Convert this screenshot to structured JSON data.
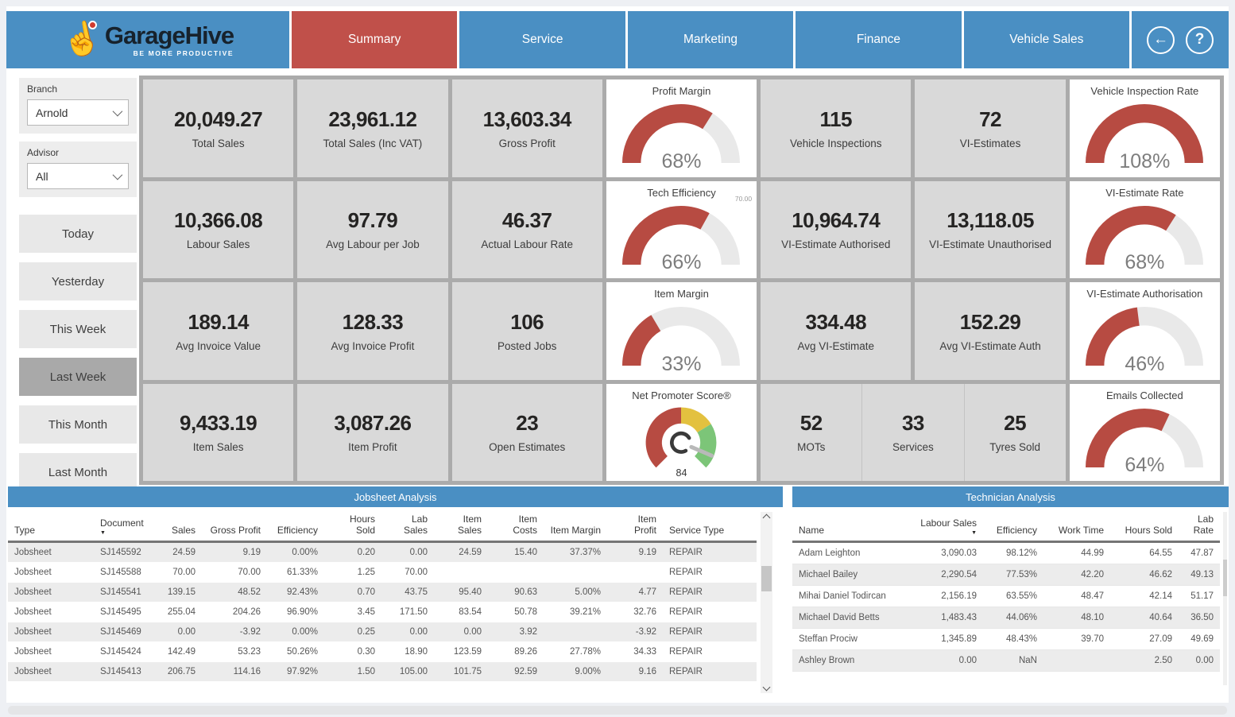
{
  "header": {
    "logo": {
      "brand": "GarageHive",
      "tagline": "BE MORE PRODUCTIVE"
    },
    "tabs": [
      {
        "label": "Summary",
        "active": true
      },
      {
        "label": "Service",
        "active": false
      },
      {
        "label": "Marketing",
        "active": false
      },
      {
        "label": "Finance",
        "active": false
      },
      {
        "label": "Vehicle Sales",
        "active": false
      }
    ],
    "icons": [
      {
        "name": "back",
        "glyph": "←"
      },
      {
        "name": "help",
        "glyph": "?"
      }
    ]
  },
  "sidebar": {
    "slicers": [
      {
        "label": "Branch",
        "value": "Arnold"
      },
      {
        "label": "Advisor",
        "value": "All"
      }
    ],
    "buttons": [
      {
        "label": "Today",
        "selected": false
      },
      {
        "label": "Yesterday",
        "selected": false
      },
      {
        "label": "This Week",
        "selected": false
      },
      {
        "label": "Last Week",
        "selected": true
      },
      {
        "label": "This Month",
        "selected": false
      },
      {
        "label": "Last Month",
        "selected": false
      }
    ]
  },
  "grid": {
    "rows": [
      {
        "cells": [
          {
            "type": "kpi",
            "value": "20,049.27",
            "label": "Total Sales"
          },
          {
            "type": "kpi",
            "value": "23,961.12",
            "label": "Total Sales (Inc VAT)"
          },
          {
            "type": "kpi",
            "value": "13,603.34",
            "label": "Gross Profit"
          },
          {
            "type": "gauge",
            "title": "Profit Margin",
            "percent": 68,
            "display": "68%"
          },
          {
            "type": "kpi",
            "value": "115",
            "label": "Vehicle Inspections"
          },
          {
            "type": "kpi",
            "value": "72",
            "label": "VI-Estimates"
          },
          {
            "type": "gauge",
            "title": "Vehicle Inspection Rate",
            "percent": 108,
            "display": "108%"
          }
        ]
      },
      {
        "cells": [
          {
            "type": "kpi",
            "value": "10,366.08",
            "label": "Labour Sales"
          },
          {
            "type": "kpi",
            "value": "97.79",
            "label": "Avg Labour per Job"
          },
          {
            "type": "kpi",
            "value": "46.37",
            "label": "Actual Labour Rate"
          },
          {
            "type": "gauge",
            "title": "Tech Efficiency",
            "percent": 66,
            "display": "66%",
            "target": "70.00"
          },
          {
            "type": "kpi",
            "value": "10,964.74",
            "label": "VI-Estimate Authorised"
          },
          {
            "type": "kpi",
            "value": "13,118.05",
            "label": "VI-Estimate Unauthorised"
          },
          {
            "type": "gauge",
            "title": "VI-Estimate Rate",
            "percent": 68,
            "display": "68%"
          }
        ]
      },
      {
        "cells": [
          {
            "type": "kpi",
            "value": "189.14",
            "label": "Avg Invoice Value"
          },
          {
            "type": "kpi",
            "value": "128.33",
            "label": "Avg Invoice Profit"
          },
          {
            "type": "kpi",
            "value": "106",
            "label": "Posted Jobs"
          },
          {
            "type": "gauge",
            "title": "Item Margin",
            "percent": 33,
            "display": "33%"
          },
          {
            "type": "kpi",
            "value": "334.48",
            "label": "Avg VI-Estimate"
          },
          {
            "type": "kpi",
            "value": "152.29",
            "label": "Avg VI-Estimate Auth"
          },
          {
            "type": "gauge",
            "title": "VI-Estimate Authorisation",
            "percent": 46,
            "display": "46%"
          }
        ]
      },
      {
        "cells": [
          {
            "type": "kpi",
            "value": "9,433.19",
            "label": "Item Sales"
          },
          {
            "type": "kpi",
            "value": "3,087.26",
            "label": "Item Profit"
          },
          {
            "type": "kpi",
            "value": "23",
            "label": "Open Estimates"
          },
          {
            "type": "nps",
            "title": "Net Promoter Score®",
            "value": "84",
            "needle_angle": 113
          },
          {
            "type": "triple",
            "items": [
              {
                "value": "52",
                "label": "MOTs"
              },
              {
                "value": "33",
                "label": "Services"
              },
              {
                "value": "25",
                "label": "Tyres Sold"
              }
            ]
          },
          {
            "type": "gauge",
            "title": "Emails Collected",
            "percent": 64,
            "display": "64%"
          }
        ]
      }
    ]
  },
  "tables": {
    "jobsheet": {
      "title": "Jobsheet Analysis",
      "columns": [
        "Type",
        "Document",
        "Sales",
        "Gross Profit",
        "Efficiency",
        "Hours Sold",
        "Lab Sales",
        "Item Sales",
        "Item Costs",
        "Item Margin",
        "Item Profit",
        "Service Type"
      ],
      "sorted_column": "Document",
      "numeric_columns": [
        2,
        3,
        4,
        5,
        6,
        7,
        8,
        9,
        10
      ],
      "rows": [
        [
          "Jobsheet",
          "SJ145592",
          "24.59",
          "9.19",
          "0.00%",
          "0.20",
          "0.00",
          "24.59",
          "15.40",
          "37.37%",
          "9.19",
          "REPAIR"
        ],
        [
          "Jobsheet",
          "SJ145588",
          "70.00",
          "70.00",
          "61.33%",
          "1.25",
          "70.00",
          "",
          "",
          "",
          "",
          "REPAIR"
        ],
        [
          "Jobsheet",
          "SJ145541",
          "139.15",
          "48.52",
          "92.43%",
          "0.70",
          "43.75",
          "95.40",
          "90.63",
          "5.00%",
          "4.77",
          "REPAIR"
        ],
        [
          "Jobsheet",
          "SJ145495",
          "255.04",
          "204.26",
          "96.90%",
          "3.45",
          "171.50",
          "83.54",
          "50.78",
          "39.21%",
          "32.76",
          "REPAIR"
        ],
        [
          "Jobsheet",
          "SJ145469",
          "0.00",
          "-3.92",
          "0.00%",
          "0.25",
          "0.00",
          "0.00",
          "3.92",
          "",
          "-3.92",
          "REPAIR"
        ],
        [
          "Jobsheet",
          "SJ145424",
          "142.49",
          "53.23",
          "50.26%",
          "0.30",
          "18.90",
          "123.59",
          "89.26",
          "27.78%",
          "34.33",
          "REPAIR"
        ],
        [
          "Jobsheet",
          "SJ145413",
          "206.75",
          "114.16",
          "97.92%",
          "1.50",
          "105.00",
          "101.75",
          "92.59",
          "9.00%",
          "9.16",
          "REPAIR"
        ]
      ]
    },
    "technician": {
      "title": "Technician Analysis",
      "columns": [
        "Name",
        "Labour Sales",
        "Efficiency",
        "Work Time",
        "Hours Sold",
        "Lab Rate"
      ],
      "sorted_column": "Labour Sales",
      "numeric_columns": [
        1,
        2,
        3,
        4,
        5
      ],
      "rows": [
        [
          "Adam Leighton",
          "3,090.03",
          "98.12%",
          "44.99",
          "64.55",
          "47.87"
        ],
        [
          "Michael Bailey",
          "2,290.54",
          "77.53%",
          "42.20",
          "46.62",
          "49.13"
        ],
        [
          "Mihai Daniel Todircan",
          "2,156.19",
          "63.55%",
          "48.47",
          "42.14",
          "51.17"
        ],
        [
          "Michael David Betts",
          "1,483.43",
          "44.06%",
          "48.10",
          "40.64",
          "36.50"
        ],
        [
          "Steffan Prociw",
          "1,345.89",
          "48.43%",
          "39.70",
          "27.09",
          "49.69"
        ],
        [
          "Ashley Brown",
          "0.00",
          "NaN",
          "",
          "2.50",
          "0.00"
        ]
      ]
    }
  },
  "colors": {
    "nav_blue": "#4a8fc3",
    "active_tab_red": "#c0504a",
    "gauge_red": "#b74b42",
    "nps_red": "#b74b42",
    "nps_yellow": "#e3c13f",
    "nps_green": "#7cc578",
    "card_gray": "#d9d9d9",
    "grid_gray": "#ababab",
    "selected_button_gray": "#a9a9a9",
    "brand_text": "#17222c"
  }
}
